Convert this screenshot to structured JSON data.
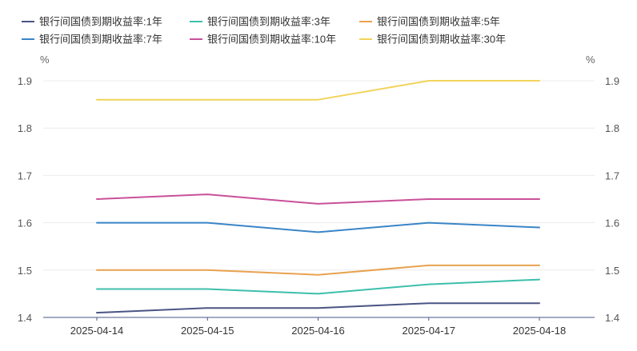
{
  "chart_data": {
    "type": "line",
    "title": "",
    "categories": [
      "2025-04-14",
      "2025-04-15",
      "2025-04-16",
      "2025-04-17",
      "2025-04-18"
    ],
    "y_unit_left": "%",
    "y_unit_right": "%",
    "ylim": [
      1.4,
      1.9
    ],
    "yticks": [
      "1.4",
      "1.5",
      "1.6",
      "1.7",
      "1.8",
      "1.9"
    ],
    "grid": true,
    "legend_position": "top-left",
    "series": [
      {
        "name": "银行间国债到期收益率:1年",
        "color": "#4a5584",
        "values": [
          1.41,
          1.42,
          1.42,
          1.43,
          1.43
        ]
      },
      {
        "name": "银行间国债到期收益率:3年",
        "color": "#3dbfad",
        "values": [
          1.46,
          1.46,
          1.45,
          1.47,
          1.48
        ]
      },
      {
        "name": "银行间国债到期收益率:5年",
        "color": "#e8a24f",
        "values": [
          1.5,
          1.5,
          1.49,
          1.51,
          1.51
        ]
      },
      {
        "name": "银行间国债到期收益率:7年",
        "color": "#3a85c7",
        "values": [
          1.6,
          1.6,
          1.58,
          1.6,
          1.59
        ]
      },
      {
        "name": "银行间国债到期收益率:10年",
        "color": "#c9509a",
        "values": [
          1.65,
          1.66,
          1.64,
          1.65,
          1.65
        ]
      },
      {
        "name": "银行间国债到期收益率:30年",
        "color": "#f2d35a",
        "values": [
          1.86,
          1.86,
          1.86,
          1.9,
          1.9
        ]
      }
    ]
  }
}
